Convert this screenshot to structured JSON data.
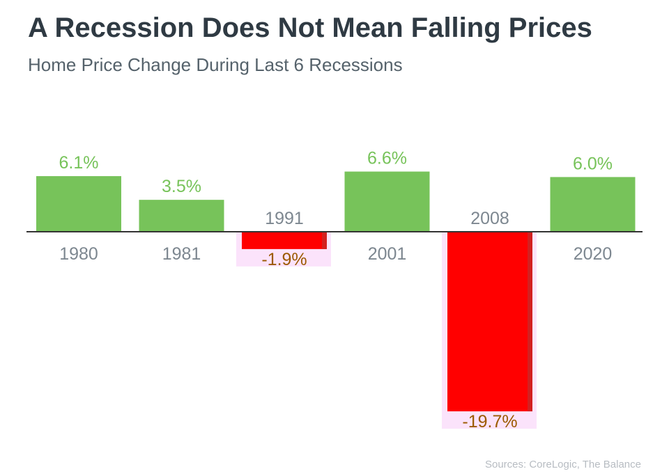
{
  "title": "A Recession Does Not Mean Falling Prices",
  "subtitle": "Home Price Change During Last 6 Recessions",
  "source": "Sources: CoreLogic, The Balance",
  "colors": {
    "positive": "#77c35a",
    "negative": "#ff0000",
    "negative_label": "#9c5a00",
    "category_label": "#7d8790",
    "axis": "#333333",
    "highlight": "#fbe3fb"
  },
  "chart_data": {
    "type": "bar",
    "categories": [
      "1980",
      "1981",
      "1991",
      "2001",
      "2008",
      "2020"
    ],
    "values": [
      6.1,
      3.5,
      -1.9,
      6.6,
      -19.7,
      6.0
    ],
    "labels": [
      "6.1%",
      "3.5%",
      "-1.9%",
      "6.6%",
      "-19.7%",
      "6.0%"
    ],
    "title": "A Recession Does Not Mean Falling Prices",
    "subtitle": "Home Price Change During Last 6 Recessions",
    "ylim": [
      -20,
      8
    ],
    "grid": false
  }
}
